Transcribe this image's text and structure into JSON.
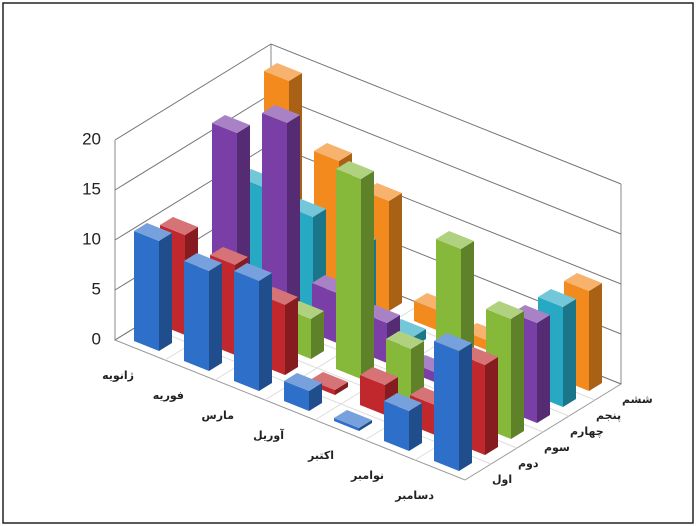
{
  "chart_data": {
    "type": "bar3d",
    "categories": [
      "ژانویه",
      "فوریه",
      "مارس",
      "آوریل",
      "اکتبر",
      "نوامبر",
      "دسامبر"
    ],
    "series": [
      {
        "name": "اول",
        "color": "#2e6fc9",
        "values": [
          11,
          10,
          11,
          2,
          0.3,
          4,
          12
        ]
      },
      {
        "name": "دوم",
        "color": "#c0282d",
        "values": [
          10,
          9,
          7,
          0.5,
          3,
          3,
          9
        ]
      },
      {
        "name": "سوم",
        "color": "#86b83a",
        "values": [
          1,
          1,
          4,
          20,
          5,
          17,
          12
        ]
      },
      {
        "name": "چهارم",
        "color": "#7a3fa6",
        "values": [
          17,
          20,
          5,
          4,
          1,
          1,
          10
        ]
      },
      {
        "name": "پنجم",
        "color": "#27a9c4",
        "values": [
          10,
          9,
          8,
          1,
          1,
          1,
          10
        ]
      },
      {
        "name": "ششم",
        "color": "#f28a1e",
        "values": [
          19,
          13,
          11,
          2,
          1,
          1,
          10
        ]
      }
    ],
    "ylim": [
      0,
      20
    ],
    "yticks": [
      0,
      5,
      10,
      15,
      20
    ],
    "grid": true
  }
}
